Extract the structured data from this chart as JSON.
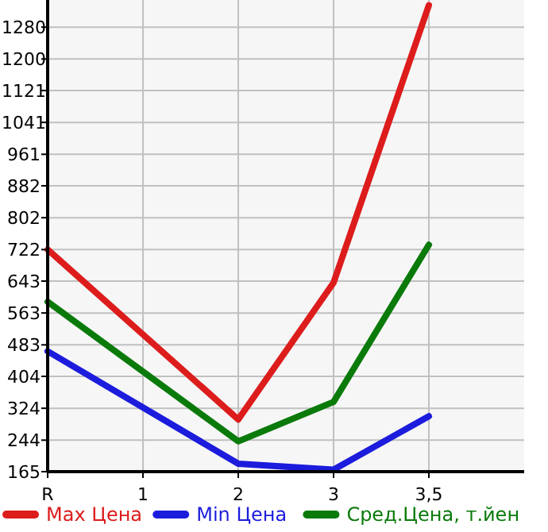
{
  "chart_data": {
    "type": "line",
    "categories": [
      "R",
      "1",
      "2",
      "3",
      "3,5"
    ],
    "ylim": [
      165,
      1348
    ],
    "yticks": [
      165,
      244,
      324,
      404,
      483,
      563,
      643,
      722,
      802,
      882,
      961,
      1041,
      1121,
      1200,
      1280
    ],
    "grid": true,
    "legend": "bottom",
    "marker": "none",
    "line_style": "solid",
    "series": [
      {
        "name": "Max Цена",
        "color": "#dd1c1c",
        "values": [
          722,
          null,
          296,
          639,
          1335
        ]
      },
      {
        "name": "Min Цена",
        "color": "#1c1cdd",
        "values": [
          467,
          null,
          185,
          170,
          304
        ]
      },
      {
        "name": "Сред.Цена, т.йен",
        "color": "#0a7a0a",
        "values": [
          591,
          null,
          241,
          340,
          734
        ]
      }
    ]
  }
}
